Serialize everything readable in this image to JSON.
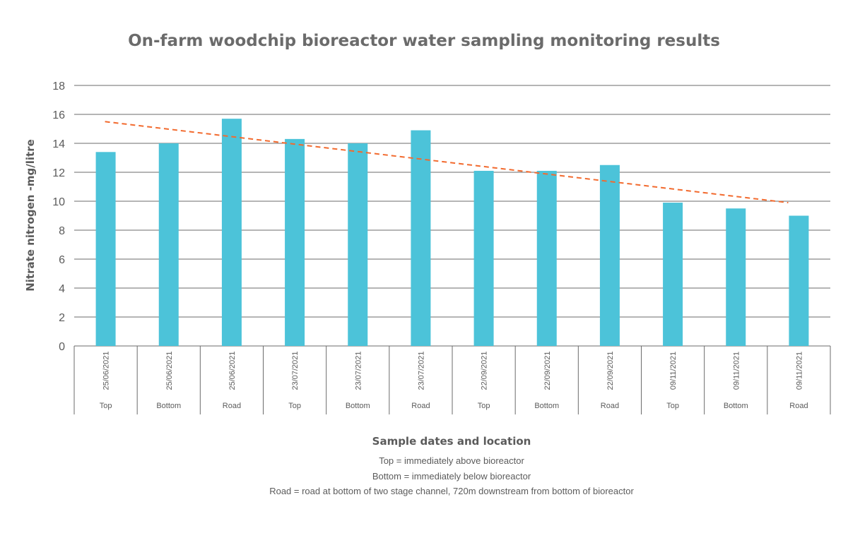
{
  "chart_data": {
    "type": "bar",
    "title": "On-farm woodchip bioreactor water sampling monitoring results",
    "xlabel": "Sample dates and location",
    "ylabel": "Nitrate nitrogen -mg/litre",
    "ylim": [
      0,
      18
    ],
    "yticks": [
      0,
      2,
      4,
      6,
      8,
      10,
      12,
      14,
      16,
      18
    ],
    "grid": true,
    "categories": [
      {
        "date": "25/06/2021",
        "location": "Top"
      },
      {
        "date": "25/06/2021",
        "location": "Bottom"
      },
      {
        "date": "25/06/2021",
        "location": "Road"
      },
      {
        "date": "23/07/2021",
        "location": "Top"
      },
      {
        "date": "23/07/2021",
        "location": "Bottom"
      },
      {
        "date": "23/07/2021",
        "location": "Road"
      },
      {
        "date": "22/09/2021",
        "location": "Top"
      },
      {
        "date": "22/09/2021",
        "location": "Bottom"
      },
      {
        "date": "22/09/2021",
        "location": "Road"
      },
      {
        "date": "09/11/2021",
        "location": "Top"
      },
      {
        "date": "09/11/2021",
        "location": "Bottom"
      },
      {
        "date": "09/11/2021",
        "location": "Road"
      }
    ],
    "values": [
      13.4,
      14.0,
      15.7,
      14.3,
      14.0,
      14.9,
      12.1,
      12.1,
      12.5,
      9.9,
      9.5,
      9.0
    ],
    "trendline": {
      "style": "dashed",
      "start": 15.5,
      "end": 9.9
    },
    "colors": {
      "bar": "#4cc3d9",
      "trendline": "#f26a2e",
      "grid": "#6b6b6b",
      "text": "#5b5b5b"
    }
  },
  "notes": [
    "Top = immediately above bioreactor",
    "Bottom = immediately below bioreactor",
    "Road = road at bottom of two stage channel, 720m downstream from bottom of bioreactor"
  ]
}
